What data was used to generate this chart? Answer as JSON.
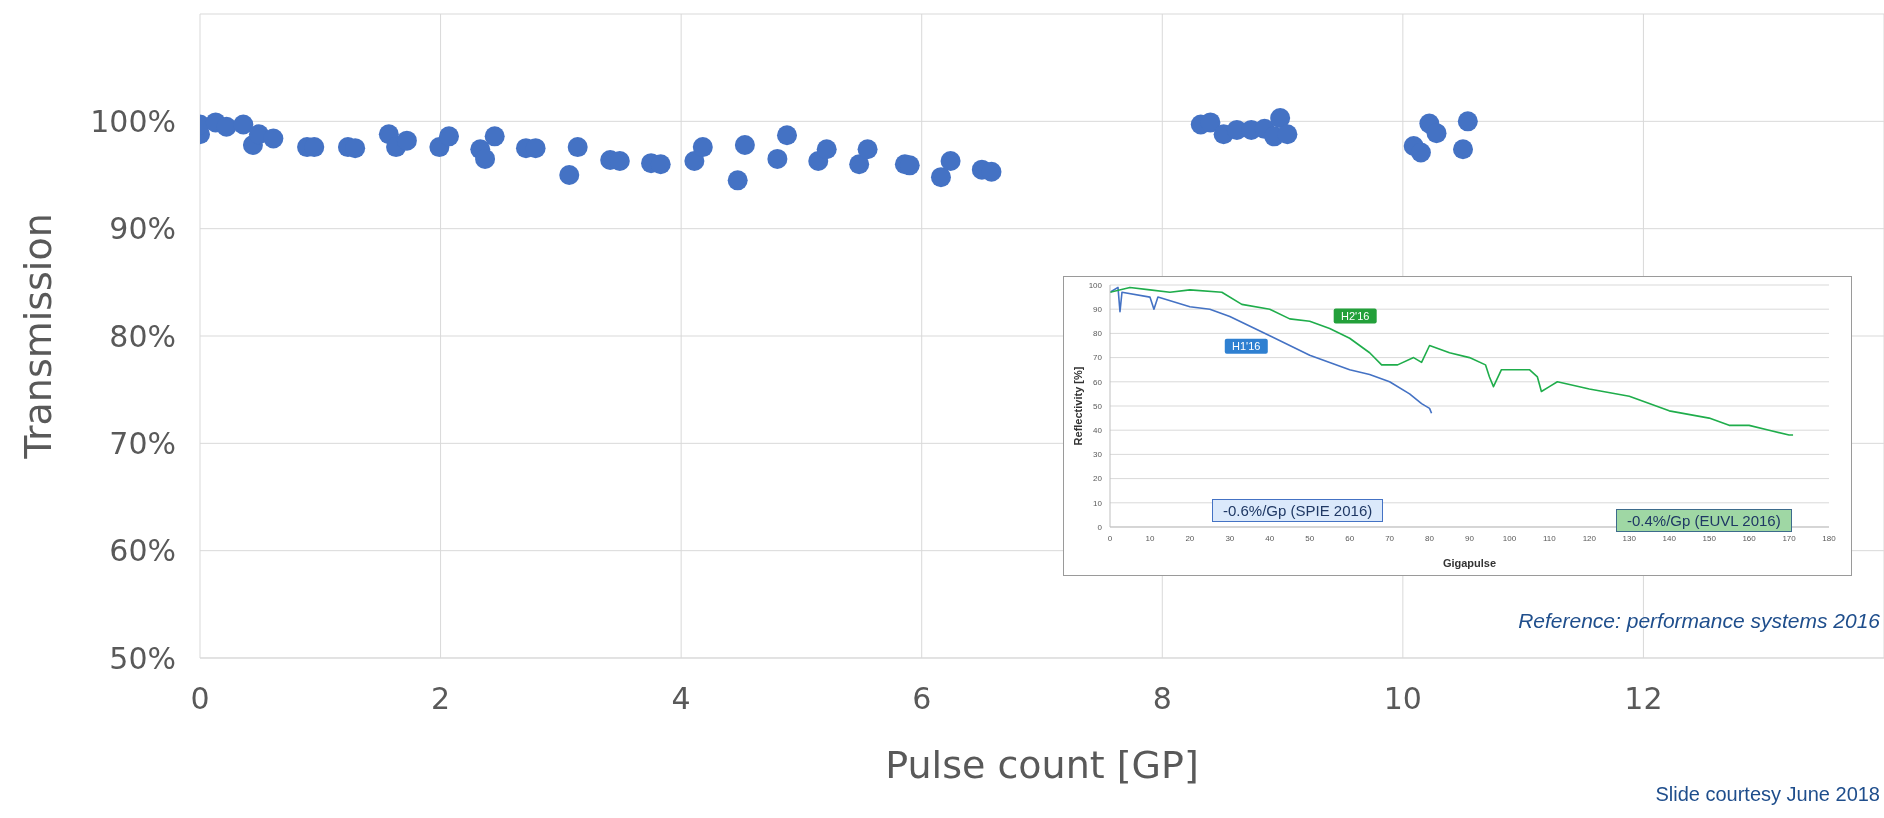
{
  "chart_data": [
    {
      "type": "scatter",
      "xlabel": "Pulse count [GP]",
      "ylabel": "Transmission",
      "marker": "circle",
      "grid": true,
      "legend": false,
      "xlim": [
        0,
        14
      ],
      "xticks": [
        0,
        2,
        4,
        6,
        8,
        10,
        12
      ],
      "ylim": [
        50,
        110
      ],
      "yticks": [
        {
          "value": 50,
          "label": "50%"
        },
        {
          "value": 60,
          "label": "60%"
        },
        {
          "value": 70,
          "label": "70%"
        },
        {
          "value": 80,
          "label": "80%"
        },
        {
          "value": 90,
          "label": "90%"
        },
        {
          "value": 100,
          "label": "100%"
        }
      ],
      "series": [
        {
          "color": "#4472c4",
          "x": [
            0,
            0,
            0.13,
            0.22,
            0.36,
            0.44,
            0.49,
            0.61,
            0.89,
            0.95,
            1.23,
            1.29,
            1.57,
            1.63,
            1.72,
            1.99,
            2.07,
            2.33,
            2.37,
            2.45,
            2.71,
            2.79,
            3.07,
            3.14,
            3.41,
            3.49,
            3.75,
            3.83,
            4.11,
            4.18,
            4.47,
            4.53,
            4.8,
            4.88,
            5.14,
            5.21,
            5.48,
            5.55,
            5.86,
            5.9,
            6.16,
            6.24,
            6.5,
            6.58,
            8.32,
            8.4,
            8.51,
            8.62,
            8.74,
            8.85,
            8.93,
            8.98,
            9.04,
            10.09,
            10.15,
            10.22,
            10.28,
            10.5,
            10.54
          ],
          "values": [
            98.8,
            99.7,
            99.9,
            99.5,
            99.7,
            97.8,
            98.8,
            98.4,
            97.6,
            97.6,
            97.6,
            97.5,
            98.8,
            97.6,
            98.2,
            97.6,
            98.6,
            97.4,
            96.5,
            98.6,
            97.5,
            97.5,
            95.0,
            97.6,
            96.4,
            96.3,
            96.1,
            96.0,
            96.3,
            97.6,
            94.5,
            97.8,
            96.5,
            98.7,
            96.3,
            97.4,
            96.0,
            97.4,
            96.0,
            95.9,
            94.8,
            96.3,
            95.5,
            95.3,
            99.7,
            99.9,
            98.8,
            99.2,
            99.2,
            99.3,
            98.6,
            100.3,
            98.8,
            97.7,
            97.1,
            99.8,
            98.9,
            97.4,
            100
          ]
        }
      ],
      "annotations": [
        "Slide courtesy June 2018"
      ]
    },
    {
      "type": "line",
      "xlabel": "Gigapulse",
      "ylabel": "Reflectivity [%]",
      "grid": "y",
      "legend": false,
      "marker": "none",
      "xlim": [
        0,
        180
      ],
      "xticks": [
        0,
        10,
        20,
        30,
        40,
        50,
        60,
        70,
        80,
        90,
        100,
        110,
        120,
        130,
        140,
        150,
        160,
        170,
        180
      ],
      "ylim": [
        0,
        100
      ],
      "yticks": [
        0,
        10,
        20,
        30,
        40,
        50,
        60,
        70,
        80,
        90,
        100
      ],
      "series": [
        {
          "name": "H1'16",
          "color": "#4472c4",
          "x": [
            0,
            2,
            2.5,
            3,
            10,
            11,
            12,
            20,
            25,
            30,
            40,
            50,
            55,
            60,
            65,
            70,
            75,
            78,
            80,
            80.5
          ],
          "values": [
            97,
            99,
            89,
            97,
            95,
            90,
            95,
            91,
            90,
            87,
            79,
            71,
            68,
            65,
            63,
            60,
            55,
            51,
            49,
            47
          ]
        },
        {
          "name": "H2'16",
          "color": "#1fad4b",
          "x": [
            0,
            5,
            10,
            15,
            20,
            28,
            33,
            40,
            45,
            50,
            55,
            60,
            65,
            68,
            72,
            76,
            78,
            80,
            85,
            90,
            94,
            95,
            96,
            98,
            105,
            107,
            108,
            110,
            112,
            120,
            130,
            140,
            150,
            155,
            160,
            165,
            170,
            171
          ],
          "values": [
            97,
            99,
            98,
            97,
            98,
            97,
            92,
            90,
            86,
            85,
            82,
            78,
            72,
            67,
            67,
            70,
            68,
            75,
            72,
            70,
            67,
            62,
            58,
            65,
            65,
            62,
            56,
            58,
            60,
            57,
            54,
            48,
            45,
            42,
            42,
            40,
            38,
            38
          ]
        }
      ],
      "annotations": [
        "-0.6%/Gp (SPIE 2016)",
        "-0.4%/Gp (EUVL 2016)",
        "Reference: performance systems 2016"
      ]
    }
  ]
}
